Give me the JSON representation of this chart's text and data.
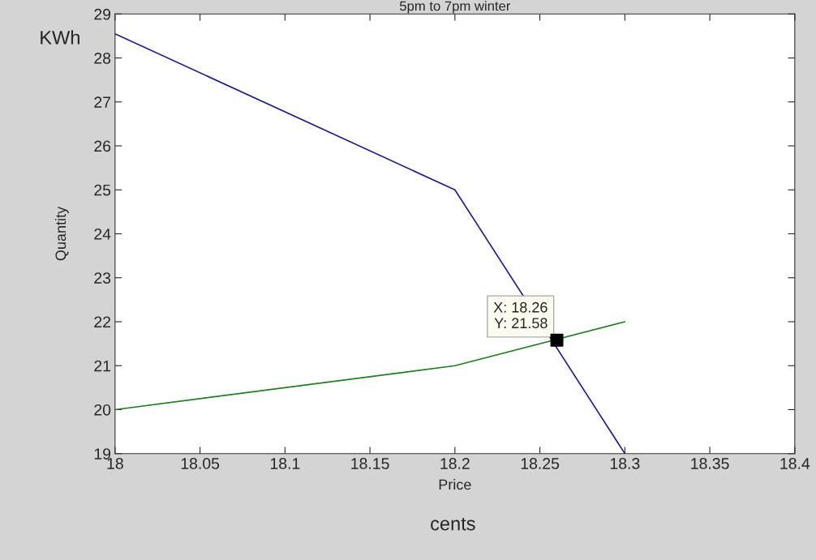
{
  "chart_data": {
    "type": "line",
    "title": "5pm to 7pm winter",
    "xlabel": "Price",
    "ylabel": "Quantity",
    "x": [
      18,
      18.2,
      18.3
    ],
    "series": [
      {
        "color": "#1f1f8f",
        "values": [
          28.55,
          25,
          19
        ]
      },
      {
        "color": "#1f7f1f",
        "values": [
          20,
          21,
          22
        ]
      },
      {
        "type": "scatter",
        "x": [
          18.26
        ],
        "color": "#000000",
        "marker": "square",
        "values": [
          21.58
        ]
      }
    ],
    "xlim": [
      18,
      18.4
    ],
    "xticks": [
      18,
      18.05,
      18.1,
      18.15,
      18.2,
      18.25,
      18.3,
      18.35,
      18.4
    ],
    "ylim": [
      19,
      29
    ],
    "yticks": [
      19,
      20,
      21,
      22,
      23,
      24,
      25,
      26,
      27,
      28,
      29
    ],
    "grid": false,
    "legend": false,
    "annotations": [
      {
        "text": "X: 18.26\nY: 21.58",
        "x": 18.26,
        "y": 21.58
      },
      "KWh",
      "cents"
    ]
  }
}
